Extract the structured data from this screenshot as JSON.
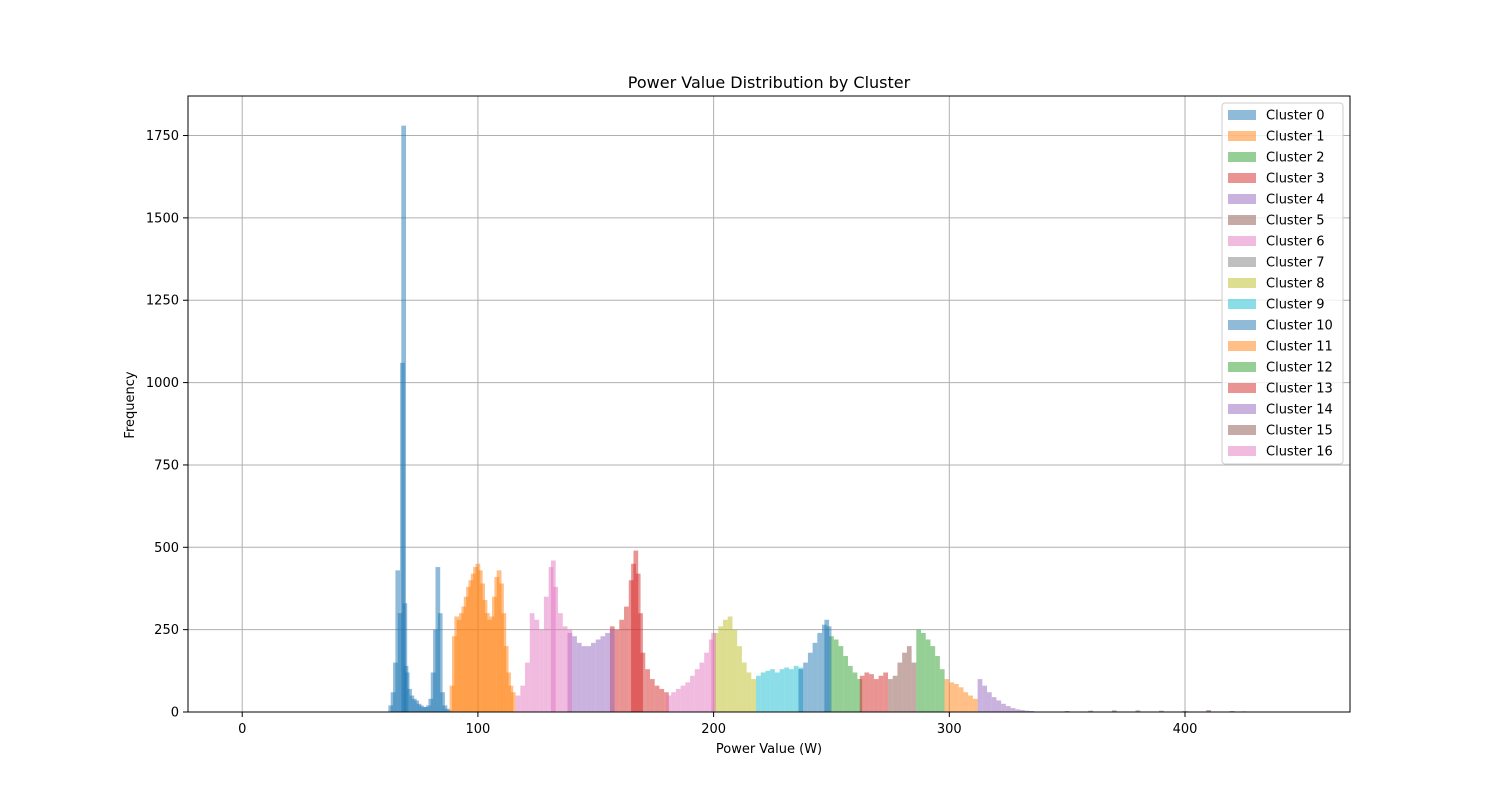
{
  "chart_data": {
    "type": "bar",
    "title": "Power Value Distribution by Cluster",
    "xlabel": "Power Value (W)",
    "ylabel": "Frequency",
    "xlim": [
      -23,
      470
    ],
    "ylim": [
      0,
      1870
    ],
    "xticks": [
      0,
      100,
      200,
      300,
      400
    ],
    "yticks": [
      0,
      250,
      500,
      750,
      1000,
      1250,
      1500,
      1750
    ],
    "grid": true,
    "legend_position": "top-right",
    "series": [
      {
        "name": "Cluster 0",
        "color": "#1f77b4",
        "x": [
          63,
          64,
          65,
          66,
          67,
          68,
          68.5,
          69,
          69.5,
          70,
          71,
          72,
          73,
          74,
          75,
          76,
          77,
          78,
          79,
          80,
          81,
          82,
          83,
          84,
          85,
          86,
          87,
          88
        ],
        "y": [
          20,
          60,
          150,
          430,
          300,
          1060,
          1780,
          330,
          140,
          120,
          70,
          50,
          40,
          35,
          25,
          20,
          15,
          15,
          20,
          40,
          120,
          250,
          440,
          300,
          60,
          20,
          10,
          5
        ]
      },
      {
        "name": "Cluster 1",
        "color": "#ff7f0e",
        "x": [
          89,
          90,
          91,
          92,
          93,
          94,
          95,
          96,
          97,
          98,
          99,
          100,
          101,
          102,
          103,
          104,
          105,
          106,
          107,
          108,
          109,
          110,
          111,
          112,
          113,
          114,
          115
        ],
        "y": [
          80,
          230,
          290,
          280,
          300,
          320,
          350,
          380,
          400,
          420,
          440,
          450,
          430,
          390,
          340,
          300,
          280,
          290,
          350,
          410,
          430,
          390,
          300,
          200,
          120,
          80,
          60
        ]
      },
      {
        "name": "Cluster 2",
        "color": "#2ca02c",
        "x": [
          250,
          252,
          254,
          256,
          258,
          260,
          262
        ],
        "y": [
          230,
          220,
          200,
          170,
          140,
          120,
          100
        ]
      },
      {
        "name": "Cluster 3",
        "color": "#d62728",
        "x": [
          157,
          159,
          161,
          163,
          165,
          166,
          167,
          168,
          169,
          170,
          172,
          174,
          176,
          178,
          180
        ],
        "y": [
          260,
          250,
          280,
          320,
          400,
          450,
          490,
          420,
          300,
          180,
          130,
          100,
          80,
          70,
          60
        ]
      },
      {
        "name": "Cluster 4",
        "color": "#9467bd",
        "x": [
          139,
          141,
          143,
          145,
          147,
          149,
          151,
          153,
          155,
          157
        ],
        "y": [
          240,
          230,
          210,
          200,
          200,
          210,
          220,
          230,
          240,
          250
        ]
      },
      {
        "name": "Cluster 5",
        "color": "#8c564b",
        "x": [
          275,
          277,
          279,
          281,
          283,
          285
        ],
        "y": [
          100,
          110,
          150,
          180,
          200,
          150
        ]
      },
      {
        "name": "Cluster 6",
        "color": "#e377c2",
        "x": [
          117,
          119,
          121,
          123,
          125,
          127,
          129,
          131,
          132,
          133,
          135,
          137,
          139
        ],
        "y": [
          50,
          80,
          150,
          300,
          280,
          250,
          350,
          440,
          460,
          380,
          300,
          260,
          250
        ]
      },
      {
        "name": "Cluster 7",
        "color": "#7f7f7f",
        "x": [],
        "y": []
      },
      {
        "name": "Cluster 8",
        "color": "#bcbd22",
        "x": [
          201,
          203,
          205,
          207,
          209,
          211,
          213,
          215,
          217
        ],
        "y": [
          240,
          260,
          280,
          290,
          250,
          200,
          150,
          120,
          100
        ]
      },
      {
        "name": "Cluster 9",
        "color": "#17becf",
        "x": [
          219,
          221,
          223,
          225,
          227,
          229,
          231,
          233,
          235,
          237
        ],
        "y": [
          110,
          120,
          125,
          130,
          120,
          130,
          135,
          130,
          140,
          135
        ]
      },
      {
        "name": "Cluster 10",
        "color": "#1f77b4",
        "x": [
          237,
          239,
          241,
          243,
          245,
          247,
          248,
          249
        ],
        "y": [
          130,
          150,
          180,
          210,
          240,
          265,
          280,
          260
        ]
      },
      {
        "name": "Cluster 11",
        "color": "#ff7f0e",
        "x": [
          299,
          301,
          303,
          305,
          307,
          309,
          311
        ],
        "y": [
          100,
          90,
          85,
          75,
          60,
          50,
          40
        ]
      },
      {
        "name": "Cluster 12",
        "color": "#2ca02c",
        "x": [
          287,
          289,
          291,
          293,
          295,
          297
        ],
        "y": [
          250,
          240,
          220,
          200,
          170,
          130
        ]
      },
      {
        "name": "Cluster 13",
        "color": "#d62728",
        "x": [
          263,
          265,
          267,
          269,
          271,
          273
        ],
        "y": [
          110,
          120,
          115,
          100,
          110,
          120
        ]
      },
      {
        "name": "Cluster 14",
        "color": "#9467bd",
        "x": [
          313,
          315,
          317,
          319,
          321,
          323,
          325,
          327,
          329,
          331,
          333,
          335
        ],
        "y": [
          100,
          80,
          60,
          45,
          35,
          25,
          18,
          12,
          8,
          6,
          4,
          3
        ]
      },
      {
        "name": "Cluster 15",
        "color": "#8c564b",
        "x": [
          350,
          360,
          370,
          380,
          390,
          400,
          410,
          420,
          425
        ],
        "y": [
          3,
          4,
          5,
          5,
          4,
          3,
          6,
          3,
          2
        ]
      },
      {
        "name": "Cluster 16",
        "color": "#e377c2",
        "x": [
          181,
          183,
          185,
          187,
          189,
          191,
          193,
          195,
          197,
          199,
          200
        ],
        "y": [
          50,
          60,
          70,
          80,
          90,
          110,
          130,
          150,
          180,
          220,
          240
        ]
      }
    ]
  }
}
